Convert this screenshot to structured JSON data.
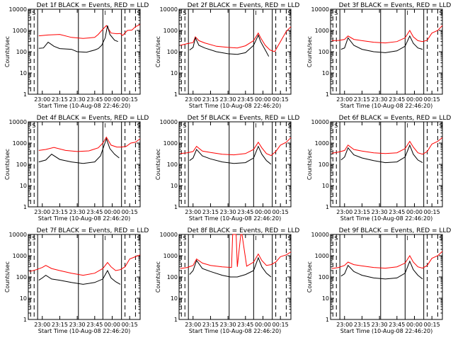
{
  "colors": {
    "events": "#000000",
    "lld": "#ff0000",
    "frame": "#000000",
    "background": "#ffffff"
  },
  "chart_data": [
    {
      "type": "line",
      "title": "Det 1f BLACK = Events, RED = LLD",
      "xlabel": "Start Time (10-Aug-08 22:46:20)",
      "ylabel": "Counts/sec",
      "yscale": "log",
      "ylim": [
        1,
        10000
      ],
      "xlim": [
        "22:48",
        "00:24"
      ],
      "xticks": [
        "23:00",
        "23:15",
        "23:30",
        "23:45",
        "00:00",
        "00:15"
      ],
      "yticks": [
        "1",
        "10",
        "100",
        "1000",
        "10000"
      ],
      "marker_text": [
        "S",
        "I",
        "S"
      ],
      "solid_markers": [
        "22:56",
        "23:31",
        "23:52",
        "00:08"
      ],
      "dashed_markers": [
        "22:50",
        "22:53",
        "00:11",
        "00:20"
      ],
      "series": [
        {
          "x": [
            "22:57",
            "23:05",
            "23:15",
            "23:25",
            "23:35",
            "23:45",
            "23:48",
            "23:51",
            "23:55",
            "23:59",
            "00:04",
            "00:07",
            "00:09",
            "00:13",
            "00:17",
            "00:20",
            "00:24"
          ],
          "values": [
            560,
            610,
            650,
            470,
            420,
            470,
            650,
            1000,
            1700,
            750,
            700,
            720,
            580,
            1000,
            1050,
            1500,
            1900
          ]
        },
        {
          "x": [
            "22:57",
            "23:01",
            "23:05",
            "23:10",
            "23:15",
            "23:25",
            "23:30",
            "23:38",
            "23:45",
            "23:48",
            "23:51",
            "23:54",
            "23:56",
            "23:58",
            "00:02",
            "00:05"
          ],
          "values": [
            145,
            150,
            280,
            180,
            140,
            130,
            100,
            95,
            120,
            140,
            200,
            450,
            1700,
            650,
            350,
            300
          ]
        }
      ]
    },
    {
      "type": "line",
      "title": "Det 2f BLACK = Events, RED = LLD",
      "xlabel": "Start Time (10-Aug-08 22:46:20)",
      "ylabel": "Counts/sec",
      "yscale": "log",
      "ylim": [
        1,
        10000
      ],
      "xlim": [
        "22:48",
        "00:24"
      ],
      "xticks": [
        "23:00",
        "23:15",
        "23:30",
        "23:45",
        "00:00",
        "00:15"
      ],
      "yticks": [
        "1",
        "10",
        "100",
        "1000",
        "10000"
      ],
      "marker_text": [
        "S",
        "I",
        "S"
      ],
      "solid_markers": [
        "22:56",
        "23:31",
        "23:52",
        "00:08"
      ],
      "dashed_markers": [
        "22:50",
        "22:53",
        "00:11",
        "00:20"
      ],
      "series": [
        {
          "x": [
            "22:49",
            "22:55",
            "23:00",
            "23:02",
            "23:05",
            "23:10",
            "23:20",
            "23:30",
            "23:38",
            "23:45",
            "23:52",
            "23:56",
            "23:58",
            "00:02",
            "00:06",
            "00:10",
            "00:15",
            "00:20",
            "00:24"
          ],
          "values": [
            200,
            240,
            270,
            500,
            330,
            260,
            180,
            160,
            150,
            190,
            330,
            750,
            450,
            200,
            120,
            100,
            300,
            900,
            1500
          ]
        },
        {
          "x": [
            "22:57",
            "23:00",
            "23:02",
            "23:05",
            "23:10",
            "23:20",
            "23:30",
            "23:38",
            "23:45",
            "23:52",
            "23:56",
            "23:58",
            "00:02",
            "00:05"
          ],
          "values": [
            120,
            160,
            450,
            200,
            150,
            100,
            80,
            75,
            90,
            200,
            600,
            300,
            120,
            60
          ]
        }
      ]
    },
    {
      "type": "line",
      "title": "Det 3f BLACK = Events, RED = LLD",
      "xlabel": "Start Time (10-Aug-08 22:46:20)",
      "ylabel": "Counts/sec",
      "yscale": "log",
      "ylim": [
        1,
        10000
      ],
      "xlim": [
        "22:48",
        "00:24"
      ],
      "xticks": [
        "23:00",
        "23:15",
        "23:30",
        "23:45",
        "00:00",
        "00:15"
      ],
      "yticks": [
        "1",
        "10",
        "100",
        "1000",
        "10000"
      ],
      "marker_text": [
        "S",
        "I",
        "S"
      ],
      "solid_markers": [
        "22:56",
        "23:31",
        "23:52",
        "00:08"
      ],
      "dashed_markers": [
        "22:50",
        "22:53",
        "00:11",
        "00:20"
      ],
      "series": [
        {
          "x": [
            "22:49",
            "22:55",
            "23:00",
            "23:03",
            "23:08",
            "23:15",
            "23:25",
            "23:35",
            "23:45",
            "23:52",
            "23:56",
            "23:59",
            "00:03",
            "00:07",
            "00:11",
            "00:15",
            "00:20",
            "00:24"
          ],
          "values": [
            330,
            340,
            380,
            550,
            380,
            330,
            280,
            260,
            300,
            450,
            1000,
            500,
            330,
            300,
            350,
            750,
            1000,
            1700
          ]
        },
        {
          "x": [
            "22:57",
            "23:00",
            "23:03",
            "23:08",
            "23:15",
            "23:25",
            "23:35",
            "23:45",
            "23:52",
            "23:56",
            "23:59",
            "00:03",
            "00:07"
          ],
          "values": [
            130,
            150,
            450,
            200,
            130,
            100,
            90,
            110,
            180,
            550,
            250,
            150,
            130
          ]
        }
      ]
    },
    {
      "type": "line",
      "title": "Det 4f BLACK = Events, RED = LLD",
      "xlabel": "Start Time (10-Aug-08 22:46:20)",
      "ylabel": "Counts/sec",
      "yscale": "log",
      "ylim": [
        1,
        10000
      ],
      "xlim": [
        "22:48",
        "00:24"
      ],
      "xticks": [
        "23:00",
        "23:15",
        "23:30",
        "23:45",
        "00:00",
        "00:15"
      ],
      "yticks": [
        "1",
        "10",
        "100",
        "1000",
        "10000"
      ],
      "marker_text": [
        "S",
        "I",
        "S"
      ],
      "solid_markers": [
        "22:56",
        "23:31",
        "23:52",
        "00:08"
      ],
      "dashed_markers": [
        "22:50",
        "22:53",
        "00:11",
        "00:20"
      ],
      "series": [
        {
          "x": [
            "22:57",
            "23:03",
            "23:10",
            "23:20",
            "23:30",
            "23:40",
            "23:48",
            "23:52",
            "23:55",
            "23:59",
            "00:04",
            "00:08",
            "00:12",
            "00:16",
            "00:20",
            "00:24"
          ],
          "values": [
            450,
            500,
            620,
            450,
            400,
            430,
            600,
            1000,
            1900,
            800,
            650,
            650,
            700,
            1000,
            1100,
            1600
          ]
        },
        {
          "x": [
            "22:57",
            "23:03",
            "23:08",
            "23:15",
            "23:25",
            "23:35",
            "23:45",
            "23:50",
            "23:55",
            "23:58",
            "00:02",
            "00:06"
          ],
          "values": [
            130,
            160,
            300,
            170,
            130,
            110,
            130,
            250,
            1600,
            550,
            300,
            200
          ]
        }
      ]
    },
    {
      "type": "line",
      "title": "Det 5f BLACK = Events, RED = LLD",
      "xlabel": "Start Time (10-Aug-08 22:46:20)",
      "ylabel": "Counts/sec",
      "yscale": "log",
      "ylim": [
        1,
        10000
      ],
      "xlim": [
        "22:48",
        "00:24"
      ],
      "xticks": [
        "23:00",
        "23:15",
        "23:30",
        "23:45",
        "00:00",
        "00:15"
      ],
      "yticks": [
        "1",
        "10",
        "100",
        "1000",
        "10000"
      ],
      "marker_text": [
        "S",
        "I",
        "S"
      ],
      "solid_markers": [
        "22:56",
        "23:31",
        "23:52",
        "00:08"
      ],
      "dashed_markers": [
        "22:50",
        "22:53",
        "00:11",
        "00:20"
      ],
      "series": [
        {
          "x": [
            "22:49",
            "22:55",
            "23:00",
            "23:03",
            "23:08",
            "23:15",
            "23:25",
            "23:35",
            "23:45",
            "23:52",
            "23:56",
            "23:59",
            "00:03",
            "00:07",
            "00:11",
            "00:15",
            "00:20",
            "00:24"
          ],
          "values": [
            320,
            350,
            400,
            700,
            420,
            360,
            300,
            280,
            320,
            500,
            1100,
            600,
            320,
            260,
            400,
            800,
            1100,
            1800
          ]
        },
        {
          "x": [
            "22:57",
            "23:00",
            "23:03",
            "23:08",
            "23:15",
            "23:25",
            "23:35",
            "23:45",
            "23:52",
            "23:56",
            "23:59",
            "00:03",
            "00:07"
          ],
          "values": [
            150,
            200,
            500,
            250,
            180,
            130,
            110,
            120,
            200,
            700,
            300,
            150,
            100
          ]
        }
      ]
    },
    {
      "type": "line",
      "title": "Det 6f BLACK = Events, RED = LLD",
      "xlabel": "Start Time (10-Aug-08 22:46:20)",
      "ylabel": "Counts/sec",
      "yscale": "log",
      "ylim": [
        1,
        10000
      ],
      "xlim": [
        "22:48",
        "00:24"
      ],
      "xticks": [
        "23:00",
        "23:15",
        "23:30",
        "23:45",
        "00:00",
        "00:15"
      ],
      "yticks": [
        "1",
        "10",
        "100",
        "1000",
        "10000"
      ],
      "marker_text": [
        "S",
        "I",
        "S"
      ],
      "solid_markers": [
        "22:56",
        "23:31",
        "23:52",
        "00:08"
      ],
      "dashed_markers": [
        "22:50",
        "22:53",
        "00:11",
        "00:20"
      ],
      "series": [
        {
          "x": [
            "22:49",
            "22:55",
            "23:00",
            "23:03",
            "23:08",
            "23:15",
            "23:25",
            "23:35",
            "23:45",
            "23:52",
            "23:56",
            "23:59",
            "00:03",
            "00:07",
            "00:11",
            "00:15",
            "00:20",
            "00:24"
          ],
          "values": [
            330,
            380,
            450,
            800,
            500,
            420,
            350,
            320,
            350,
            550,
            1200,
            650,
            350,
            300,
            400,
            900,
            1200,
            1800
          ]
        },
        {
          "x": [
            "22:57",
            "23:00",
            "23:03",
            "23:08",
            "23:15",
            "23:25",
            "23:35",
            "23:45",
            "23:52",
            "23:56",
            "23:59",
            "00:03",
            "00:07"
          ],
          "values": [
            160,
            220,
            600,
            280,
            200,
            150,
            120,
            130,
            220,
            800,
            300,
            160,
            120
          ]
        }
      ]
    },
    {
      "type": "line",
      "title": "Det 7f BLACK = Events, RED = LLD",
      "xlabel": "Start Time (10-Aug-08 22:46:20)",
      "ylabel": "Counts/sec",
      "yscale": "log",
      "ylim": [
        1,
        10000
      ],
      "xlim": [
        "22:48",
        "00:24"
      ],
      "xticks": [
        "23:00",
        "23:15",
        "23:30",
        "23:45",
        "00:00",
        "00:15"
      ],
      "yticks": [
        "1",
        "10",
        "100",
        "1000",
        "10000"
      ],
      "marker_text": [
        "S",
        "I",
        "S"
      ],
      "solid_markers": [
        "22:56",
        "23:31",
        "23:52",
        "00:08"
      ],
      "dashed_markers": [
        "22:50",
        "22:53",
        "00:11",
        "00:20"
      ],
      "series": [
        {
          "x": [
            "22:49",
            "22:55",
            "23:00",
            "23:03",
            "23:08",
            "23:15",
            "23:25",
            "23:35",
            "23:45",
            "23:52",
            "23:56",
            "23:59",
            "00:03",
            "00:07",
            "00:11",
            "00:15",
            "00:20",
            "00:24"
          ],
          "values": [
            180,
            220,
            280,
            350,
            250,
            200,
            150,
            120,
            150,
            250,
            480,
            300,
            200,
            220,
            300,
            700,
            900,
            1100
          ]
        },
        {
          "x": [
            "22:57",
            "23:00",
            "23:03",
            "23:08",
            "23:15",
            "23:25",
            "23:35",
            "23:45",
            "23:52",
            "23:56",
            "23:59",
            "00:03",
            "00:07"
          ],
          "values": [
            70,
            90,
            120,
            80,
            70,
            55,
            45,
            55,
            80,
            200,
            90,
            60,
            45
          ]
        }
      ]
    },
    {
      "type": "line",
      "title": "Det 8f BLACK = Events, RED = LLD",
      "xlabel": "Start Time (10-Aug-08 22:46:20)",
      "ylabel": "Counts/sec",
      "yscale": "log",
      "ylim": [
        1,
        10000
      ],
      "xlim": [
        "22:48",
        "00:24"
      ],
      "xticks": [
        "23:00",
        "23:15",
        "23:30",
        "23:45",
        "00:00",
        "00:15"
      ],
      "yticks": [
        "1",
        "10",
        "100",
        "1000",
        "10000"
      ],
      "marker_text": [
        "S",
        "I",
        "S"
      ],
      "solid_markers": [
        "22:56",
        "23:31",
        "23:52",
        "00:08"
      ],
      "dashed_markers": [
        "22:50",
        "22:53",
        "00:11",
        "00:20"
      ],
      "series": [
        {
          "x": [
            "22:49",
            "22:55",
            "23:00",
            "23:03",
            "23:08",
            "23:15",
            "23:25",
            "23:33",
            "23:34",
            "23:37",
            "23:38",
            "23:41",
            "23:42",
            "23:46",
            "23:52",
            "23:56",
            "23:59",
            "00:03",
            "00:07",
            "00:11",
            "00:15",
            "00:20",
            "00:24"
          ],
          "values": [
            250,
            280,
            350,
            700,
            450,
            350,
            300,
            280,
            10000,
            10000,
            300,
            10000,
            10000,
            320,
            500,
            1200,
            600,
            350,
            380,
            500,
            900,
            1100,
            1500
          ]
        },
        {
          "x": [
            "22:57",
            "23:00",
            "23:03",
            "23:08",
            "23:15",
            "23:25",
            "23:32",
            "23:38",
            "23:45",
            "23:52",
            "23:56",
            "23:59",
            "00:03",
            "00:07"
          ],
          "values": [
            130,
            200,
            600,
            250,
            180,
            120,
            100,
            100,
            130,
            200,
            800,
            300,
            150,
            100
          ]
        }
      ]
    },
    {
      "type": "line",
      "title": "Det 9f BLACK = Events, RED = LLD",
      "xlabel": "Start Time (10-Aug-08 22:46:20)",
      "ylabel": "Counts/sec",
      "yscale": "log",
      "ylim": [
        1,
        10000
      ],
      "xlim": [
        "22:48",
        "00:24"
      ],
      "xticks": [
        "23:00",
        "23:15",
        "23:30",
        "23:45",
        "00:00",
        "00:15"
      ],
      "yticks": [
        "1",
        "10",
        "100",
        "1000",
        "10000"
      ],
      "marker_text": [
        "S",
        "I",
        "S"
      ],
      "solid_markers": [
        "22:56",
        "23:31",
        "23:52",
        "00:08"
      ],
      "dashed_markers": [
        "22:50",
        "22:53",
        "00:11",
        "00:20"
      ],
      "series": [
        {
          "x": [
            "22:49",
            "22:55",
            "23:00",
            "23:03",
            "23:08",
            "23:15",
            "23:25",
            "23:35",
            "23:45",
            "23:52",
            "23:56",
            "23:59",
            "00:03",
            "00:07",
            "00:11",
            "00:15",
            "00:20",
            "00:24"
          ],
          "values": [
            250,
            280,
            350,
            500,
            380,
            330,
            280,
            260,
            300,
            450,
            1000,
            500,
            300,
            260,
            350,
            750,
            1000,
            1600
          ]
        },
        {
          "x": [
            "22:57",
            "23:00",
            "23:03",
            "23:08",
            "23:15",
            "23:25",
            "23:35",
            "23:45",
            "23:52",
            "23:56",
            "23:59",
            "00:03",
            "00:07"
          ],
          "values": [
            110,
            140,
            350,
            180,
            120,
            90,
            80,
            90,
            150,
            550,
            220,
            120,
            80
          ]
        }
      ]
    }
  ]
}
